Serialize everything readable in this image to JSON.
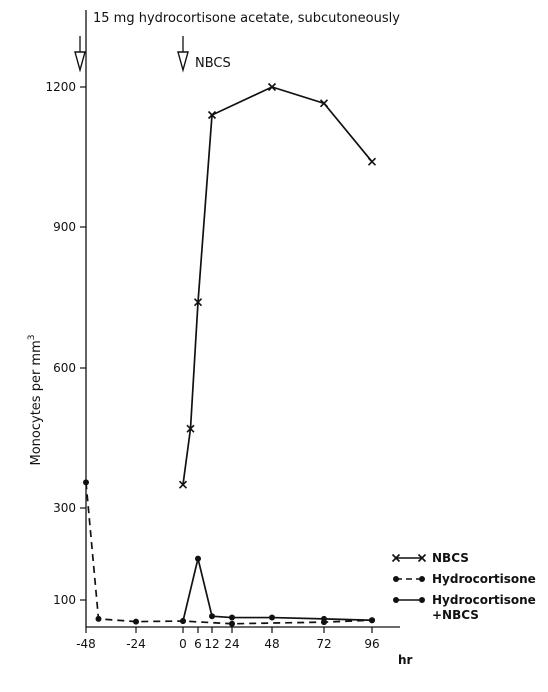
{
  "chart_data": {
    "type": "line",
    "title": "",
    "xlabel": "hr",
    "ylabel": "Monocytes per mm",
    "ylabel_superscript": "3",
    "xlim": [
      -48,
      96
    ],
    "ylim": [
      0,
      1200
    ],
    "x_ticks": [
      -48,
      -24,
      0,
      6,
      12,
      24,
      48,
      72,
      96
    ],
    "x_tick_labels": [
      "-48",
      "-24",
      "0",
      "6",
      "12",
      "24",
      "48",
      "72",
      "96"
    ],
    "y_ticks": [
      100,
      300,
      600,
      900,
      1200
    ],
    "y_tick_labels": [
      "100",
      "300",
      "600",
      "900",
      "1200"
    ],
    "annotations": [
      {
        "text": "15 mg hydrocortisone acetate, subcutoneously",
        "x": -48
      },
      {
        "text": "NBCS",
        "x": 0
      }
    ],
    "legend_position": "lower-right",
    "series": [
      {
        "name": "NBCS",
        "marker": "x",
        "line": "solid",
        "x": [
          0,
          3,
          6,
          12,
          48,
          72,
          96
        ],
        "y": [
          350,
          470,
          740,
          1140,
          1200,
          1165,
          1040
        ]
      },
      {
        "name": "Hydrocortisone",
        "marker": "dot",
        "line": "dashed",
        "x": [
          -48,
          -42,
          -24,
          0,
          24,
          72,
          96
        ],
        "y": [
          355,
          30,
          20,
          22,
          12,
          18,
          25
        ]
      },
      {
        "name": "Hydrocortisone\n+NBCS",
        "marker": "dot",
        "line": "solid",
        "x": [
          0,
          6,
          12,
          24,
          48,
          72,
          96
        ],
        "y": [
          22,
          190,
          40,
          35,
          35,
          30,
          25
        ]
      }
    ]
  }
}
